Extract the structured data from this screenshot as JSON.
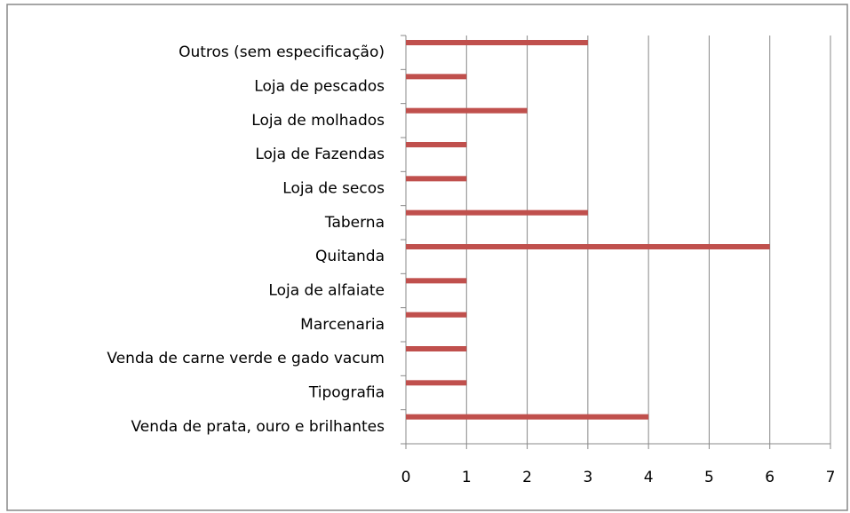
{
  "chart_data": {
    "type": "bar",
    "orientation": "horizontal",
    "categories": [
      "Outros (sem especificação)",
      "Loja de pescados",
      "Loja de molhados",
      "Loja de Fazendas",
      "Loja de secos",
      "Taberna",
      "Quitanda",
      "Loja de alfaiate",
      "Marcenaria",
      "Venda de carne verde e gado vacum",
      "Tipografia",
      "Venda de prata, ouro e brilhantes"
    ],
    "values": [
      3,
      1,
      2,
      1,
      1,
      3,
      6,
      1,
      1,
      1,
      1,
      4
    ],
    "color": "#c0504d",
    "xlim": [
      0,
      7
    ],
    "xticks": [
      0,
      1,
      2,
      3,
      4,
      5,
      6,
      7
    ],
    "grid": true
  }
}
